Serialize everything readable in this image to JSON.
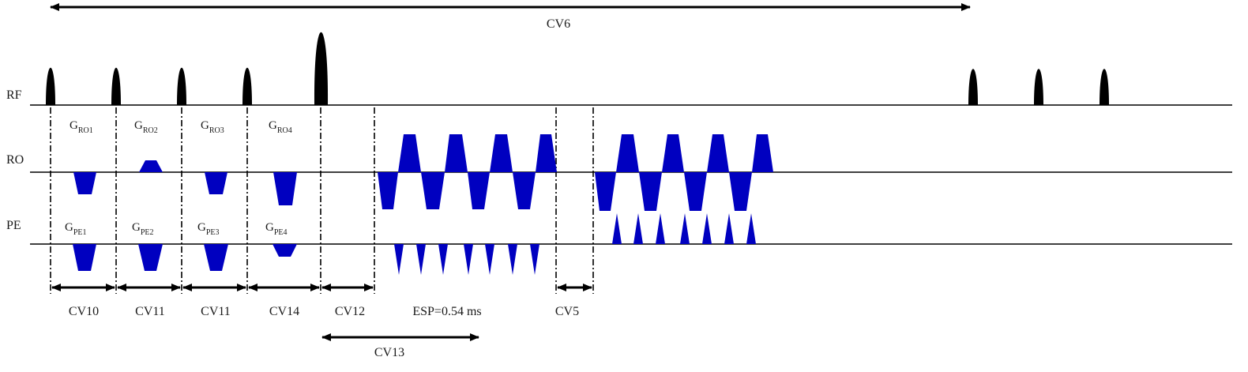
{
  "rows": {
    "rf": "RF",
    "ro": "RO",
    "pe": "PE"
  },
  "dimensions": {
    "cv6": "CV6",
    "cv10": "CV10",
    "cv11a": "CV11",
    "cv11b": "CV11",
    "cv14": "CV14",
    "cv12": "CV12",
    "esp": "ESP=0.54 ms",
    "cv5": "CV5",
    "cv13": "CV13"
  },
  "gradient_labels": {
    "ro1": {
      "main": "G",
      "sub": "RO1"
    },
    "ro2": {
      "main": "G",
      "sub": "RO2"
    },
    "ro3": {
      "main": "G",
      "sub": "RO3"
    },
    "ro4": {
      "main": "G",
      "sub": "RO4"
    },
    "pe1": {
      "main": "G",
      "sub": "PE1"
    },
    "pe2": {
      "main": "G",
      "sub": "PE2"
    },
    "pe3": {
      "main": "G",
      "sub": "PE3"
    },
    "pe4": {
      "main": "G",
      "sub": "PE4"
    }
  },
  "colors": {
    "gradient": "#0000c0",
    "pulse": "#000000",
    "line": "#000000"
  }
}
